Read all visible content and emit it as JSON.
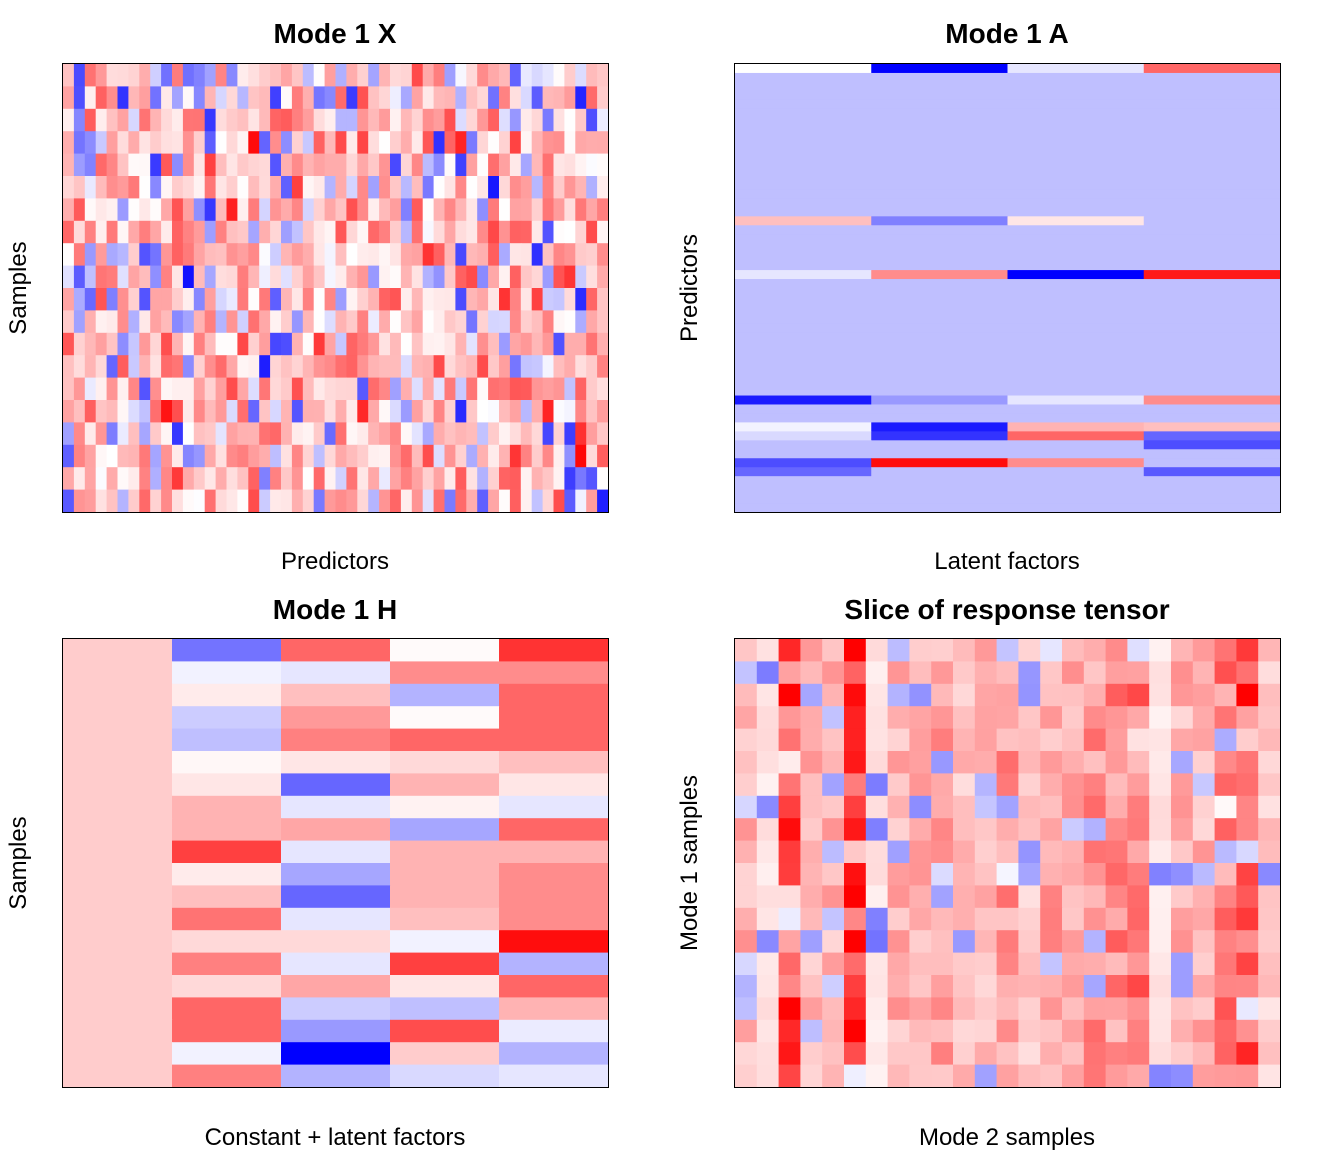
{
  "color_scale": {
    "low": "#0000FF",
    "mid": "#FFFFFF",
    "high": "#FF0000"
  },
  "chart_data": [
    {
      "type": "heatmap",
      "title": "Mode 1 X",
      "xlabel": "Predictors",
      "ylabel": "Samples",
      "value_range": [
        -1,
        1
      ],
      "grid": false,
      "rows": 20,
      "cols": 50,
      "seed": 11,
      "values_note": "",
      "values": []
    },
    {
      "type": "heatmap",
      "title": "Mode 1 A",
      "xlabel": "Latent factors",
      "ylabel": "Predictors",
      "value_range": [
        -1,
        1
      ],
      "grid": false,
      "rows": 50,
      "cols": 4,
      "background": -0.25,
      "values": [
        [
          0.0,
          -1.0,
          -0.1,
          0.6
        ],
        [
          -0.25,
          -0.25,
          -0.25,
          -0.25
        ],
        [
          -0.25,
          -0.25,
          -0.25,
          -0.25
        ],
        [
          -0.25,
          -0.25,
          -0.25,
          -0.25
        ],
        [
          -0.25,
          -0.25,
          -0.25,
          -0.25
        ],
        [
          -0.25,
          -0.25,
          -0.25,
          -0.25
        ],
        [
          -0.25,
          -0.25,
          -0.25,
          -0.25
        ],
        [
          -0.25,
          -0.25,
          -0.25,
          -0.25
        ],
        [
          -0.25,
          -0.25,
          -0.25,
          -0.25
        ],
        [
          -0.25,
          -0.25,
          -0.25,
          -0.25
        ],
        [
          -0.25,
          -0.25,
          -0.25,
          -0.25
        ],
        [
          -0.25,
          -0.25,
          -0.25,
          -0.25
        ],
        [
          -0.25,
          -0.25,
          -0.25,
          -0.25
        ],
        [
          -0.25,
          -0.25,
          -0.25,
          -0.25
        ],
        [
          -0.25,
          -0.25,
          -0.25,
          -0.25
        ],
        [
          -0.25,
          -0.25,
          -0.25,
          -0.25
        ],
        [
          -0.25,
          -0.25,
          -0.25,
          -0.25
        ],
        [
          0.25,
          -0.5,
          0.1,
          -0.25
        ],
        [
          -0.25,
          -0.25,
          -0.25,
          -0.25
        ],
        [
          -0.25,
          -0.25,
          -0.25,
          -0.25
        ],
        [
          -0.25,
          -0.25,
          -0.25,
          -0.25
        ],
        [
          -0.25,
          -0.25,
          -0.25,
          -0.25
        ],
        [
          -0.25,
          -0.25,
          -0.25,
          -0.25
        ],
        [
          -0.1,
          0.45,
          -1.0,
          0.9
        ],
        [
          -0.25,
          -0.25,
          -0.25,
          -0.25
        ],
        [
          -0.25,
          -0.25,
          -0.25,
          -0.25
        ],
        [
          -0.25,
          -0.25,
          -0.25,
          -0.25
        ],
        [
          -0.25,
          -0.25,
          -0.25,
          -0.25
        ],
        [
          -0.25,
          -0.25,
          -0.25,
          -0.25
        ],
        [
          -0.25,
          -0.25,
          -0.25,
          -0.25
        ],
        [
          -0.25,
          -0.25,
          -0.25,
          -0.25
        ],
        [
          -0.25,
          -0.25,
          -0.25,
          -0.25
        ],
        [
          -0.25,
          -0.25,
          -0.25,
          -0.25
        ],
        [
          -0.25,
          -0.25,
          -0.25,
          -0.25
        ],
        [
          -0.25,
          -0.25,
          -0.25,
          -0.25
        ],
        [
          -0.25,
          -0.25,
          -0.25,
          -0.25
        ],
        [
          -0.25,
          -0.25,
          -0.25,
          -0.25
        ],
        [
          -0.9,
          -0.4,
          -0.1,
          0.45
        ],
        [
          -0.25,
          -0.25,
          -0.25,
          -0.25
        ],
        [
          -0.25,
          -0.25,
          -0.25,
          -0.25
        ],
        [
          -0.05,
          -0.9,
          0.3,
          0.25
        ],
        [
          -0.15,
          -0.8,
          0.6,
          -0.6
        ],
        [
          -0.25,
          -0.25,
          -0.25,
          -0.7
        ],
        [
          -0.25,
          -0.25,
          -0.25,
          -0.25
        ],
        [
          -0.7,
          0.95,
          0.45,
          -0.25
        ],
        [
          -0.6,
          -0.25,
          -0.25,
          -0.65
        ],
        [
          -0.25,
          -0.25,
          -0.25,
          -0.25
        ],
        [
          -0.25,
          -0.25,
          -0.25,
          -0.25
        ],
        [
          -0.25,
          -0.25,
          -0.25,
          -0.25
        ],
        [
          -0.25,
          -0.25,
          -0.25,
          -0.25
        ]
      ]
    },
    {
      "type": "heatmap",
      "title": "Mode 1 H",
      "xlabel": "Constant + latent factors",
      "ylabel": "Samples",
      "value_range": [
        -1,
        1
      ],
      "grid": false,
      "rows": 20,
      "cols": 5,
      "values": [
        [
          0.2,
          -0.55,
          0.6,
          0.02,
          0.8
        ],
        [
          0.2,
          -0.05,
          -0.1,
          0.45,
          0.45
        ],
        [
          0.2,
          0.08,
          0.25,
          -0.3,
          0.6
        ],
        [
          0.2,
          -0.2,
          0.4,
          0.02,
          0.6
        ],
        [
          0.2,
          -0.25,
          0.5,
          0.6,
          0.6
        ],
        [
          0.2,
          0.03,
          0.1,
          0.15,
          0.25
        ],
        [
          0.2,
          0.1,
          -0.6,
          0.3,
          0.1
        ],
        [
          0.2,
          0.3,
          -0.1,
          0.05,
          -0.1
        ],
        [
          0.2,
          0.3,
          0.35,
          -0.35,
          0.6
        ],
        [
          0.2,
          0.75,
          -0.1,
          0.3,
          0.3
        ],
        [
          0.2,
          0.08,
          -0.35,
          0.3,
          0.45
        ],
        [
          0.2,
          0.25,
          -0.6,
          0.3,
          0.45
        ],
        [
          0.2,
          0.55,
          -0.1,
          0.25,
          0.45
        ],
        [
          0.2,
          0.15,
          0.15,
          -0.05,
          0.95
        ],
        [
          0.2,
          0.5,
          -0.1,
          0.75,
          -0.3
        ],
        [
          0.2,
          0.15,
          0.35,
          0.1,
          0.6
        ],
        [
          0.2,
          0.6,
          -0.2,
          -0.25,
          0.3
        ],
        [
          0.2,
          0.6,
          -0.4,
          0.7,
          -0.08
        ],
        [
          0.2,
          -0.05,
          -1.0,
          0.2,
          -0.3
        ],
        [
          0.2,
          0.5,
          -0.3,
          -0.15,
          -0.1
        ]
      ]
    },
    {
      "type": "heatmap",
      "title": "Slice of response tensor",
      "xlabel": "Mode 2 samples",
      "ylabel": "Mode 1 samples",
      "value_range": [
        -1,
        1
      ],
      "grid": false,
      "rows": 20,
      "cols": 25,
      "seed": 29,
      "values": []
    }
  ]
}
